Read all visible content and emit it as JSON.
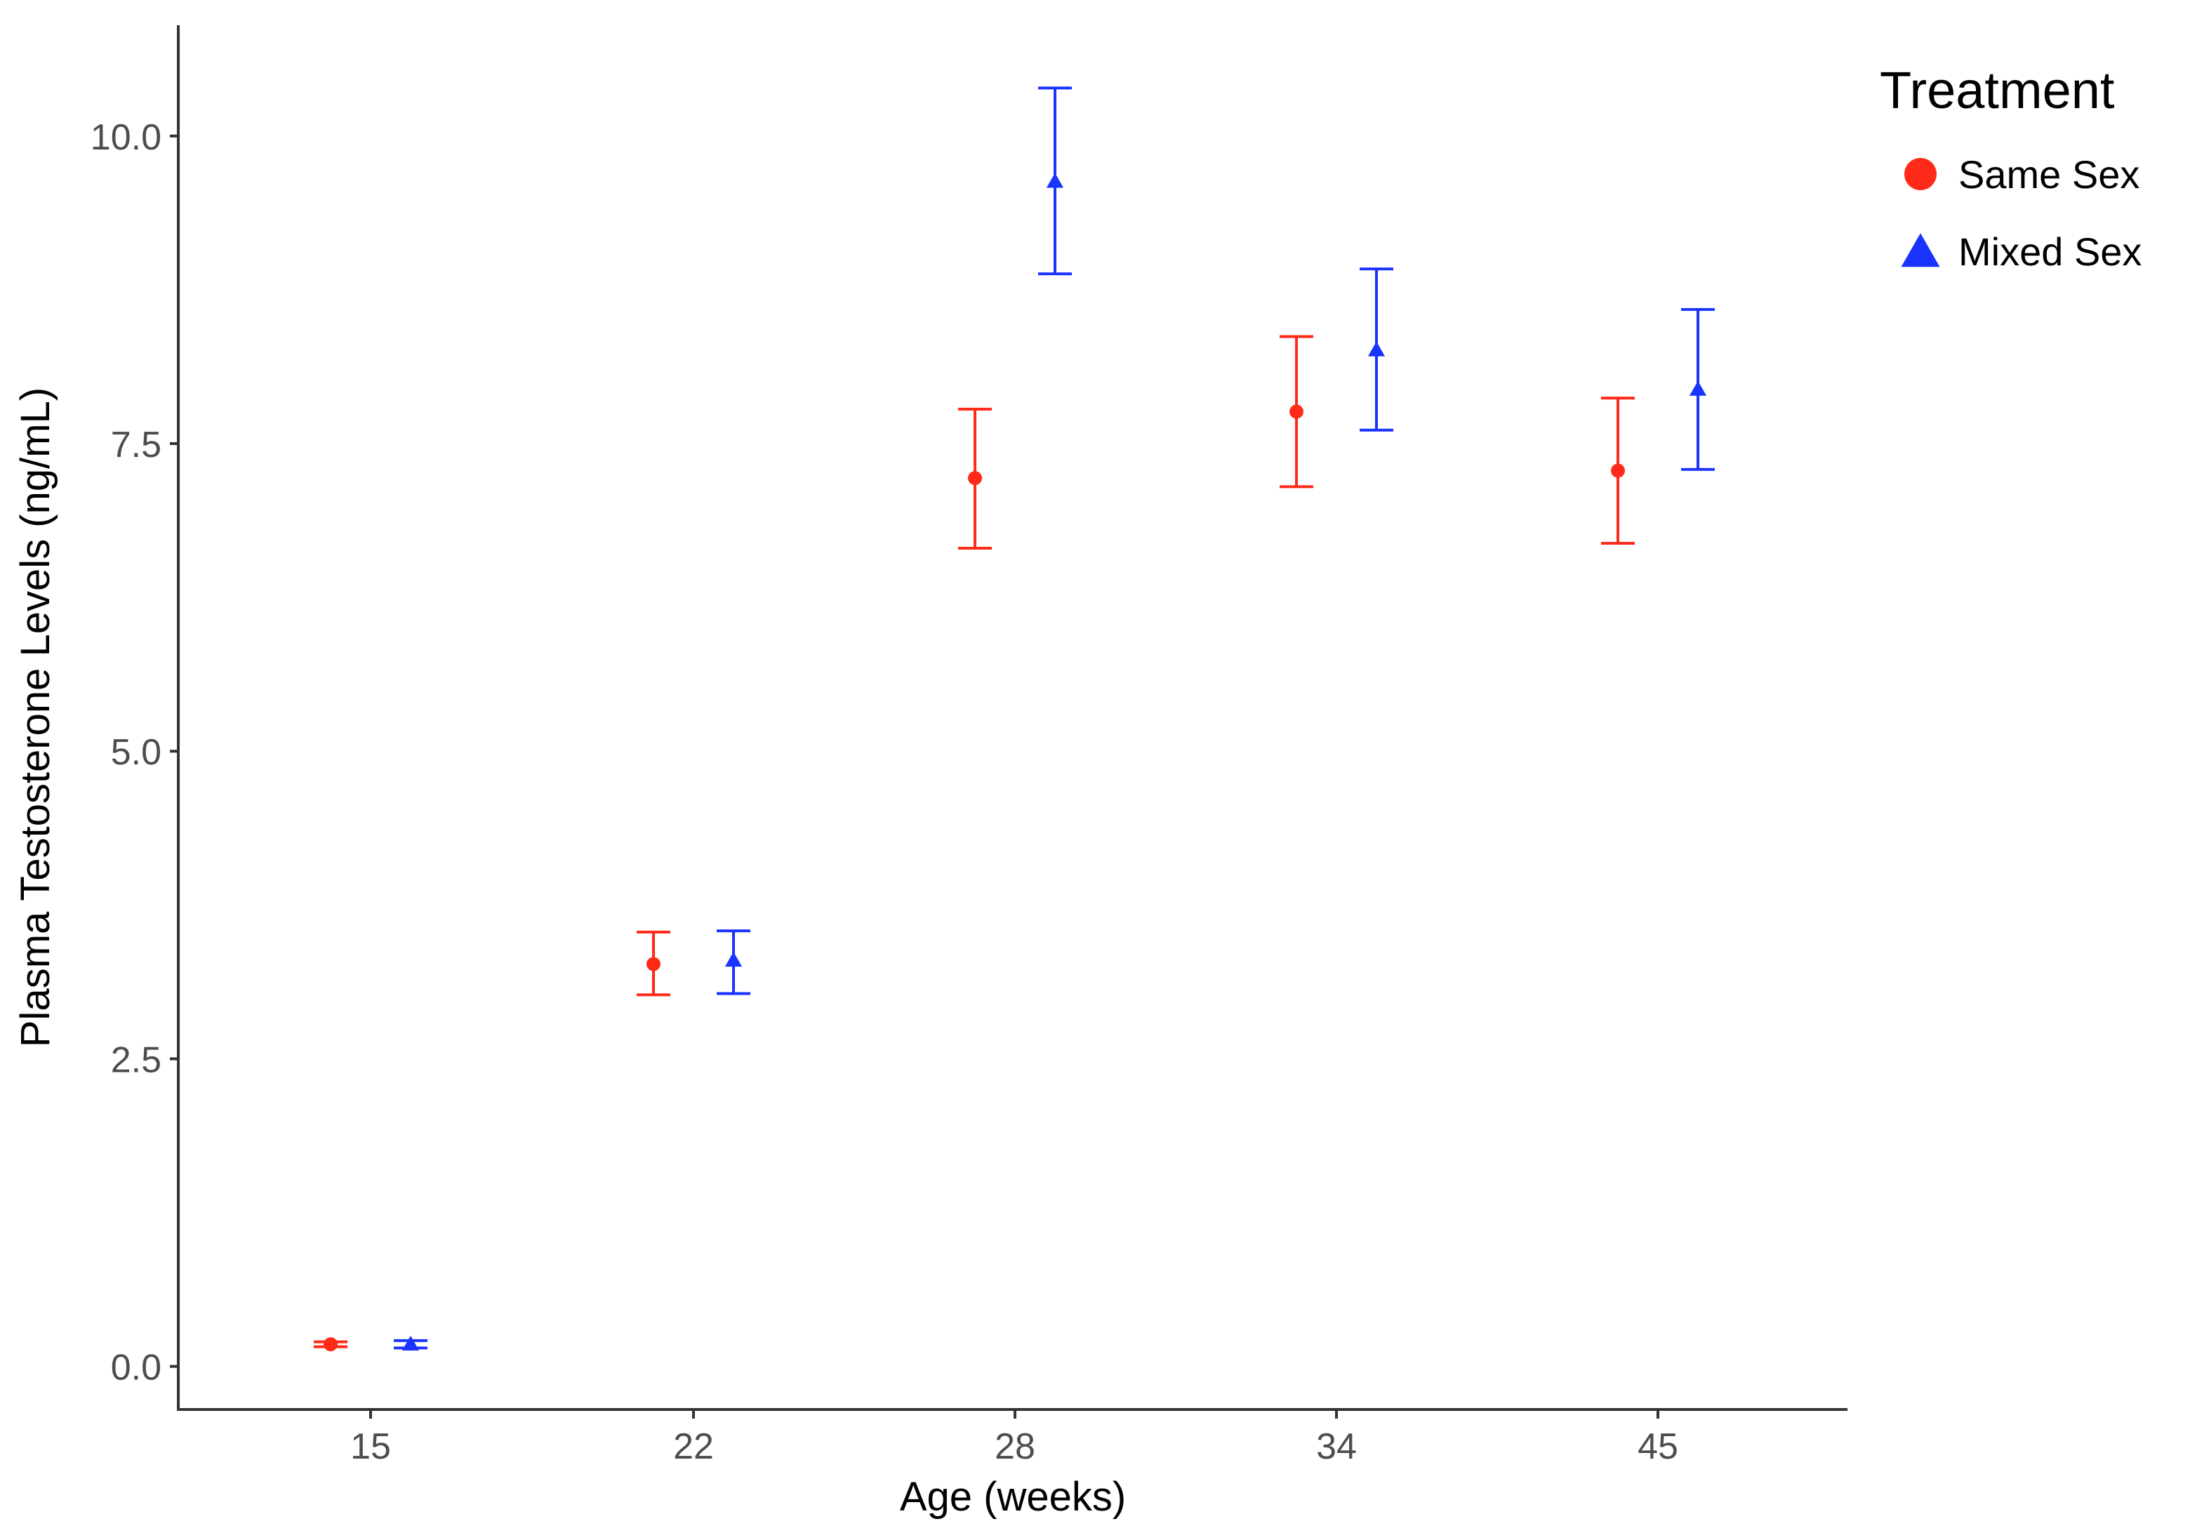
{
  "chart_data": {
    "type": "scatter",
    "xlabel": "Age (weeks)",
    "ylabel": "Plasma Testosterone Levels (ng/mL)",
    "categories": [
      "15",
      "22",
      "28",
      "34",
      "45"
    ],
    "yticks": [
      "0.0",
      "2.5",
      "5.0",
      "7.5",
      "10.0"
    ],
    "ylim": [
      -0.35,
      10.9
    ],
    "grid": false,
    "legend": {
      "title": "Treatment",
      "position": "right"
    },
    "series": [
      {
        "name": "Same Sex",
        "marker": "circle",
        "color": "#ff2a1a",
        "values": [
          0.18,
          3.27,
          7.22,
          7.76,
          7.28
        ],
        "error_low": [
          0.16,
          3.02,
          6.65,
          7.15,
          6.69
        ],
        "error_high": [
          0.2,
          3.53,
          7.78,
          8.37,
          7.87
        ]
      },
      {
        "name": "Mixed Sex",
        "marker": "triangle",
        "color": "#1a33ff",
        "values": [
          0.18,
          3.3,
          9.63,
          8.26,
          7.94
        ],
        "error_low": [
          0.15,
          3.03,
          8.88,
          7.61,
          7.29
        ],
        "error_high": [
          0.21,
          3.54,
          10.39,
          8.92,
          8.59
        ]
      }
    ]
  }
}
